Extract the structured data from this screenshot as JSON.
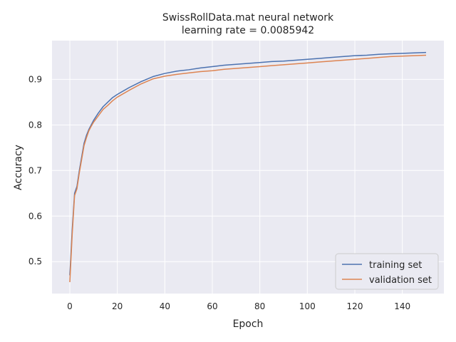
{
  "chart_data": {
    "type": "line",
    "title_line1": "SwissRollData.mat neural network",
    "title_line2": "learning rate =    0.0085942",
    "xlabel": "Epoch",
    "ylabel": "Accuracy",
    "xlim": [
      -7.5,
      157.5
    ],
    "ylim": [
      0.43,
      0.985
    ],
    "xticks": [
      0,
      20,
      40,
      60,
      80,
      100,
      120,
      140
    ],
    "xtick_labels": [
      "0",
      "20",
      "40",
      "60",
      "80",
      "100",
      "120",
      "140"
    ],
    "yticks": [
      0.5,
      0.6,
      0.7,
      0.8,
      0.9
    ],
    "ytick_labels": [
      "0.5",
      "0.6",
      "0.7",
      "0.8",
      "0.9"
    ],
    "grid": true,
    "legend_position": "lower-right",
    "background_color": "#eaeaf2",
    "series": [
      {
        "name": "training set",
        "color": "#4c72b0",
        "x": [
          0,
          1,
          2,
          3,
          4,
          5,
          6,
          7,
          8,
          9,
          10,
          12,
          14,
          16,
          18,
          20,
          25,
          30,
          35,
          40,
          45,
          50,
          55,
          60,
          65,
          70,
          75,
          80,
          85,
          90,
          95,
          100,
          105,
          110,
          115,
          120,
          125,
          130,
          135,
          140,
          145,
          150
        ],
        "y": [
          0.47,
          0.57,
          0.65,
          0.665,
          0.7,
          0.73,
          0.76,
          0.777,
          0.79,
          0.8,
          0.81,
          0.826,
          0.84,
          0.85,
          0.86,
          0.867,
          0.882,
          0.895,
          0.906,
          0.913,
          0.918,
          0.921,
          0.925,
          0.928,
          0.931,
          0.933,
          0.935,
          0.937,
          0.939,
          0.94,
          0.942,
          0.944,
          0.946,
          0.948,
          0.95,
          0.952,
          0.953,
          0.955,
          0.956,
          0.957,
          0.958,
          0.959
        ]
      },
      {
        "name": "validation set",
        "color": "#dd8452",
        "x": [
          0,
          1,
          2,
          3,
          4,
          5,
          6,
          7,
          8,
          9,
          10,
          12,
          14,
          16,
          18,
          20,
          25,
          30,
          35,
          40,
          45,
          50,
          55,
          60,
          65,
          70,
          75,
          80,
          85,
          90,
          95,
          100,
          105,
          110,
          115,
          120,
          125,
          130,
          135,
          140,
          145,
          150
        ],
        "y": [
          0.455,
          0.56,
          0.645,
          0.66,
          0.695,
          0.725,
          0.755,
          0.772,
          0.787,
          0.797,
          0.806,
          0.82,
          0.834,
          0.843,
          0.853,
          0.861,
          0.876,
          0.89,
          0.901,
          0.907,
          0.911,
          0.914,
          0.917,
          0.919,
          0.922,
          0.924,
          0.926,
          0.928,
          0.93,
          0.932,
          0.934,
          0.936,
          0.938,
          0.94,
          0.942,
          0.944,
          0.946,
          0.948,
          0.95,
          0.951,
          0.952,
          0.953
        ]
      }
    ]
  }
}
